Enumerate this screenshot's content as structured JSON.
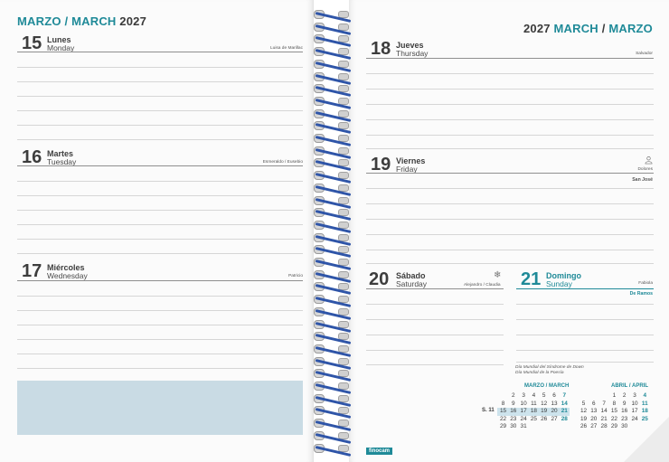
{
  "left_page": {
    "header_month_es": "MARZO",
    "header_sep": " / ",
    "header_month_en": "MARCH",
    "header_year": " 2027",
    "days": [
      {
        "num": "15",
        "es": "Lunes",
        "en": "Monday",
        "saint": "Luisa de Marillac"
      },
      {
        "num": "16",
        "es": "Martes",
        "en": "Tuesday",
        "saint": "Esmeraldo / Eusebio"
      },
      {
        "num": "17",
        "es": "Miércoles",
        "en": "Wednesday",
        "saint": "Patricio"
      }
    ]
  },
  "right_page": {
    "header_year": "2027 ",
    "header_month_en": "MARCH",
    "header_sep": " / ",
    "header_month_es": "MARZO",
    "days": [
      {
        "num": "18",
        "es": "Jueves",
        "en": "Thursday",
        "saint": "Salvador"
      },
      {
        "num": "19",
        "es": "Viernes",
        "en": "Friday",
        "saint": "Dolores",
        "holiday": "San José"
      },
      {
        "num": "20",
        "es": "Sábado",
        "en": "Saturday",
        "saint": "Alejandro / Claudia"
      },
      {
        "num": "21",
        "es": "Domingo",
        "en": "Sunday",
        "saint": "Fabiola",
        "holiday": "De Ramos"
      }
    ],
    "events": [
      "Día Mundial del Síndrome de Down",
      "Día Mundial de la Poesía"
    ],
    "brand": "finocam"
  },
  "mini_calendars": [
    {
      "title": "MARZO / MARCH",
      "week_label": "S. 11",
      "rows": [
        [
          "",
          "",
          "2",
          "3",
          "4",
          "5",
          "6",
          "7"
        ],
        [
          "",
          "8",
          "9",
          "10",
          "11",
          "12",
          "13",
          "14"
        ],
        [
          "S. 11",
          "15",
          "16",
          "17",
          "18",
          "19",
          "20",
          "21"
        ],
        [
          "",
          "22",
          "23",
          "24",
          "25",
          "26",
          "27",
          "28"
        ],
        [
          "",
          "29",
          "30",
          "31",
          "",
          "",
          "",
          ""
        ]
      ]
    },
    {
      "title": "ABRIL / APRIL",
      "rows": [
        [
          "",
          "",
          "",
          "",
          "1",
          "2",
          "3",
          "4"
        ],
        [
          "",
          "5",
          "6",
          "7",
          "8",
          "9",
          "10",
          "11"
        ],
        [
          "",
          "12",
          "13",
          "14",
          "15",
          "16",
          "17",
          "18"
        ],
        [
          "",
          "19",
          "20",
          "21",
          "22",
          "23",
          "24",
          "25"
        ],
        [
          "",
          "26",
          "27",
          "28",
          "29",
          "30",
          "",
          ""
        ]
      ]
    }
  ],
  "icons": {
    "person": "person-icon",
    "snowflake": "snowflake-icon",
    "spiral": "spiral-binding"
  },
  "colors": {
    "accent": "#1f8a98",
    "note_box": "#c9dbe4",
    "spiral": "#2f55a8"
  }
}
